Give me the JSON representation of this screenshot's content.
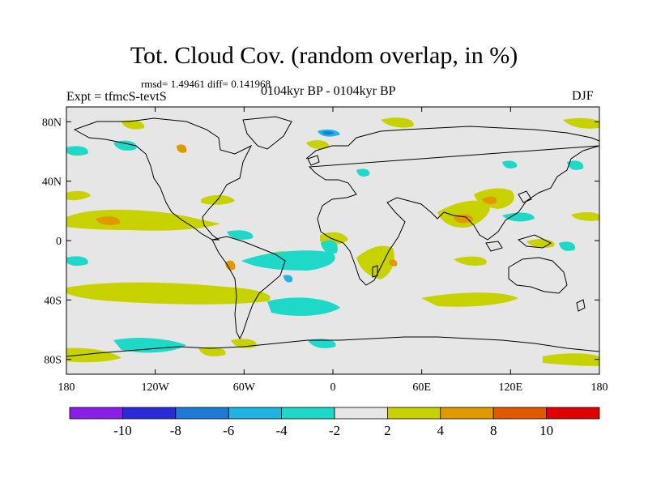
{
  "header": {
    "title": "Tot. Cloud Cov. (random overlap, in %)",
    "stats": "rmsd= 1.49461  diff= 0.141968",
    "experiment": "Expt = tfmcS-tevtS",
    "period": "0104kyr BP - 0104kyr BP",
    "season": "DJF"
  },
  "map": {
    "projection": "cylindrical equidistant",
    "lon_range": [
      -180,
      180
    ],
    "lat_range": [
      -90,
      90
    ],
    "lon_ticks": [
      {
        "value": -180,
        "label": "180"
      },
      {
        "value": -120,
        "label": "120W"
      },
      {
        "value": -60,
        "label": "60W"
      },
      {
        "value": 0,
        "label": "0"
      },
      {
        "value": 60,
        "label": "60E"
      },
      {
        "value": 120,
        "label": "120E"
      },
      {
        "value": 180,
        "label": "180"
      }
    ],
    "lat_ticks": [
      {
        "value": 80,
        "label": "80N"
      },
      {
        "value": 40,
        "label": "40N"
      },
      {
        "value": 0,
        "label": "0"
      },
      {
        "value": -40,
        "label": "40S"
      },
      {
        "value": -80,
        "label": "80S"
      }
    ],
    "background_color": "#e6e6e6",
    "coastline_color": "#000000"
  },
  "colorbar": {
    "colors": [
      "#8a1ee6",
      "#2a2ad8",
      "#1e7ad8",
      "#20b4e0",
      "#1ed8c8",
      "#e6e6e6",
      "#c8d200",
      "#e09a00",
      "#e05800",
      "#e00000"
    ],
    "labels": [
      "-10",
      "-8",
      "-6",
      "-4",
      "-2",
      "2",
      "4",
      "8",
      "10"
    ]
  }
}
